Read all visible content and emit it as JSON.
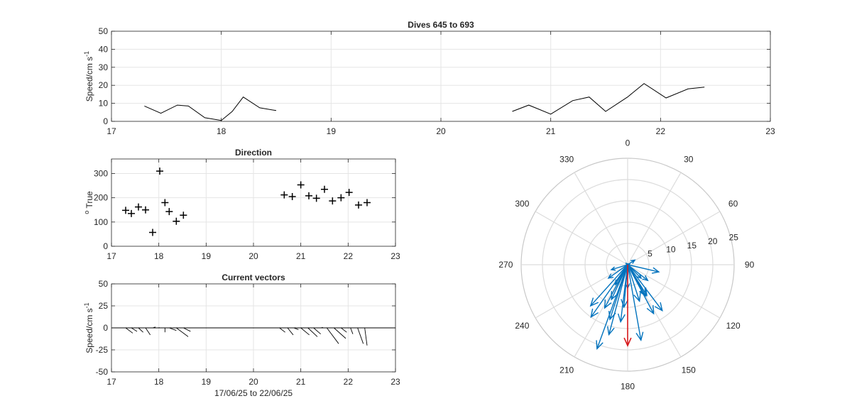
{
  "chart_data": [
    {
      "id": "speed",
      "type": "line",
      "title": "Dives 645 to 693",
      "xlabel": "",
      "ylabel": "Speed/cm s",
      "ylabel_sup": "-1",
      "xlim": [
        17,
        23
      ],
      "ylim": [
        0,
        50
      ],
      "xticks": [
        17,
        18,
        19,
        20,
        21,
        22,
        23
      ],
      "yticks": [
        0,
        10,
        20,
        30,
        40,
        50
      ],
      "grid": true,
      "segments": [
        {
          "x": [
            17.3,
            17.45,
            17.6,
            17.7,
            17.85,
            18.0,
            18.1,
            18.2,
            18.35,
            18.5
          ],
          "y": [
            8.5,
            4.5,
            9,
            8.5,
            2,
            0.5,
            5.5,
            13.5,
            7.5,
            6
          ]
        },
        {
          "x": [
            20.65,
            20.8,
            21.0,
            21.2,
            21.35,
            21.5,
            21.7,
            21.85,
            22.05,
            22.25,
            22.4
          ],
          "y": [
            5.5,
            9,
            4,
            11.5,
            13.5,
            5.5,
            13.5,
            21,
            13,
            18,
            19
          ]
        }
      ]
    },
    {
      "id": "direction",
      "type": "scatter",
      "title": "Direction",
      "xlabel": "",
      "ylabel": "True",
      "ylabel_prefix": "o",
      "xlim": [
        17,
        23
      ],
      "ylim": [
        0,
        360
      ],
      "xticks": [
        17,
        18,
        19,
        20,
        21,
        22,
        23
      ],
      "yticks": [
        0,
        100,
        200,
        300
      ],
      "grid": true,
      "marker": "+",
      "x": [
        17.3,
        17.42,
        17.57,
        17.72,
        17.87,
        18.02,
        18.13,
        18.22,
        18.37,
        18.52,
        20.65,
        20.82,
        21.0,
        21.17,
        21.33,
        21.5,
        21.67,
        21.85,
        22.02,
        22.22,
        22.4
      ],
      "y": [
        148,
        135,
        162,
        150,
        57,
        310,
        180,
        143,
        103,
        128,
        212,
        205,
        253,
        208,
        198,
        235,
        187,
        200,
        222,
        170,
        180
      ]
    },
    {
      "id": "vectors",
      "type": "line",
      "title": "Current vectors",
      "xlabel": "17/06/25 to 22/06/25",
      "ylabel": "Speed/cm s",
      "ylabel_sup": "-1",
      "xlim": [
        17,
        23
      ],
      "ylim": [
        -50,
        50
      ],
      "xticks": [
        17,
        18,
        19,
        20,
        21,
        22,
        23
      ],
      "yticks": [
        -50,
        -25,
        0,
        25,
        50
      ],
      "grid": true,
      "vectors": [
        {
          "x": 17.3,
          "dx": 0.15,
          "dy": -6
        },
        {
          "x": 17.42,
          "dx": 0.12,
          "dy": -4
        },
        {
          "x": 17.57,
          "dx": 0.1,
          "dy": -5
        },
        {
          "x": 17.72,
          "dx": 0.1,
          "dy": -8
        },
        {
          "x": 17.87,
          "dx": 0.06,
          "dy": 1
        },
        {
          "x": 18.02,
          "dx": -0.02,
          "dy": 0.5
        },
        {
          "x": 18.13,
          "dx": 0.0,
          "dy": -5
        },
        {
          "x": 18.22,
          "dx": 0.15,
          "dy": -3
        },
        {
          "x": 18.37,
          "dx": 0.25,
          "dy": -10
        },
        {
          "x": 18.52,
          "dx": 0.15,
          "dy": -4
        },
        {
          "x": 20.55,
          "dx": 0.12,
          "dy": -5
        },
        {
          "x": 20.72,
          "dx": 0.12,
          "dy": -8
        },
        {
          "x": 20.85,
          "dx": 0.1,
          "dy": -2
        },
        {
          "x": 21.0,
          "dx": 0.18,
          "dy": -8
        },
        {
          "x": 21.15,
          "dx": 0.2,
          "dy": -10
        },
        {
          "x": 21.27,
          "dx": 0.15,
          "dy": -7
        },
        {
          "x": 21.42,
          "dx": 0.05,
          "dy": 0.5
        },
        {
          "x": 21.55,
          "dx": 0.25,
          "dy": -18
        },
        {
          "x": 21.7,
          "dx": 0.25,
          "dy": -12
        },
        {
          "x": 21.85,
          "dx": 0.12,
          "dy": -5
        },
        {
          "x": 22.05,
          "dx": 0.05,
          "dy": -7
        },
        {
          "x": 22.2,
          "dx": 0.12,
          "dy": -18
        },
        {
          "x": 22.35,
          "dx": 0.05,
          "dy": -20
        }
      ]
    },
    {
      "id": "polar",
      "type": "polar-compass",
      "r_max": 25,
      "r_ticks": [
        5,
        10,
        15,
        20,
        25
      ],
      "theta_ticks": [
        0,
        30,
        60,
        90,
        120,
        150,
        180,
        210,
        240,
        270,
        300,
        330
      ],
      "zero_direction": "top",
      "rotation": "clockwise",
      "vectors": [
        {
          "dir": 148,
          "mag": 8.5
        },
        {
          "dir": 135,
          "mag": 4.5
        },
        {
          "dir": 162,
          "mag": 9
        },
        {
          "dir": 150,
          "mag": 8.5
        },
        {
          "dir": 57,
          "mag": 2
        },
        {
          "dir": 310,
          "mag": 0.5
        },
        {
          "dir": 180,
          "mag": 5.5
        },
        {
          "dir": 143,
          "mag": 13.5
        },
        {
          "dir": 103,
          "mag": 7.5
        },
        {
          "dir": 128,
          "mag": 6
        },
        {
          "dir": 212,
          "mag": 5.5
        },
        {
          "dir": 205,
          "mag": 9
        },
        {
          "dir": 253,
          "mag": 4
        },
        {
          "dir": 208,
          "mag": 11.5
        },
        {
          "dir": 198,
          "mag": 13.5
        },
        {
          "dir": 235,
          "mag": 5.5
        },
        {
          "dir": 187,
          "mag": 13.5
        },
        {
          "dir": 200,
          "mag": 21
        },
        {
          "dir": 222,
          "mag": 13
        },
        {
          "dir": 170,
          "mag": 18
        },
        {
          "dir": 152,
          "mag": 13
        },
        {
          "dir": 215,
          "mag": 15
        },
        {
          "dir": 195,
          "mag": 17
        },
        {
          "dir": 185,
          "mag": 10
        }
      ],
      "mean_vector": {
        "dir": 180,
        "mag": 19
      },
      "colors": {
        "vectors": "#0072BD",
        "mean": "#D7191C"
      }
    }
  ]
}
